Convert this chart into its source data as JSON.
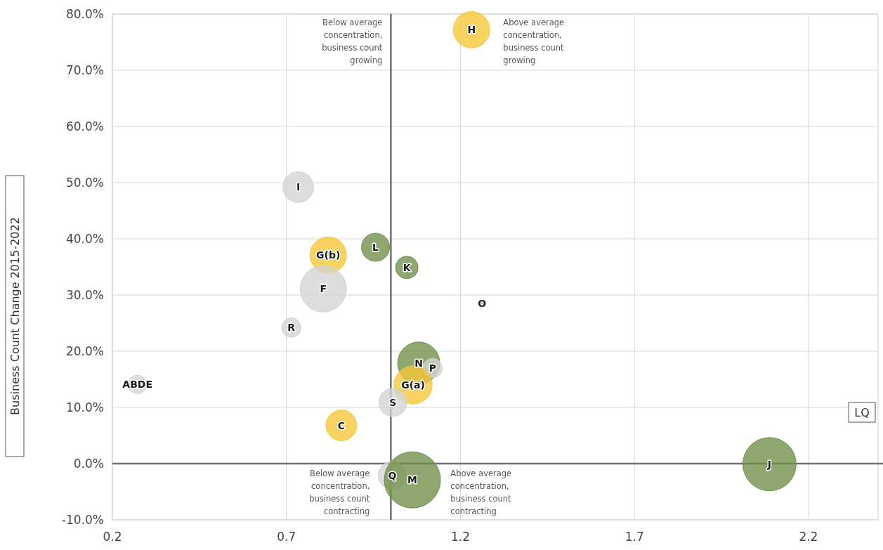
{
  "chart_data": {
    "type": "bubble",
    "xlabel": "LQ",
    "ylabel": "Business Count Change 2015-2022",
    "x": [
      0.272,
      0.734,
      0.82,
      0.806,
      0.714,
      0.956,
      1.046,
      1.262,
      1.232,
      1.08,
      1.12,
      1.064,
      1.006,
      0.858,
      1.004,
      1.062,
      2.088
    ],
    "values": [
      14.1,
      49.2,
      37.1,
      31.1,
      24.2,
      38.5,
      34.9,
      28.5,
      77.2,
      17.9,
      17.0,
      14.0,
      10.9,
      6.8,
      -2.1,
      -2.9,
      -0.1
    ],
    "sizes": [
      0.11,
      0.3,
      0.42,
      0.68,
      0.12,
      0.25,
      0.16,
      0.02,
      0.42,
      0.56,
      0.12,
      0.46,
      0.25,
      0.3,
      0.25,
      1,
      0.9
    ],
    "colors": [
      "#d4d4d4",
      "#d4d4d4",
      "#f7c636",
      "#d4d4d4",
      "#d4d4d4",
      "#6f8f48",
      "#6f8f48",
      "#6f8f48",
      "#f7c636",
      "#6f8f48",
      "#d4d4d4",
      "#f7c636",
      "#d4d4d4",
      "#f7c636",
      "#d4d4d4",
      "#6f8f48",
      "#6f8f48"
    ],
    "xlim": [
      0.2,
      2.4
    ],
    "xticks": [
      0.2,
      0.7,
      1.2,
      1.7,
      2.2
    ],
    "ylim": [
      -10,
      80
    ],
    "yticks": [
      {
        "value": -10,
        "label": "-10.0%"
      },
      {
        "value": 0,
        "label": "0.0%"
      },
      {
        "value": 10,
        "label": "10.0%"
      },
      {
        "value": 20,
        "label": "20.0%"
      },
      {
        "value": 30,
        "label": "30.0%"
      },
      {
        "value": 40,
        "label": "40.0%"
      },
      {
        "value": 50,
        "label": "50.0%"
      },
      {
        "value": 60,
        "label": "60.0%"
      },
      {
        "value": 70,
        "label": "70.0%"
      },
      {
        "value": 80,
        "label": "80.0%"
      }
    ],
    "grid": true,
    "ref_lines": [
      {
        "axis": "x",
        "value": 1,
        "color": "#707070"
      },
      {
        "axis": "y",
        "value": 0,
        "color": "#707070"
      }
    ],
    "annotations": [
      {
        "text": "ABDE",
        "x": 0.272,
        "y": 14.1
      },
      {
        "text": "I",
        "x": 0.734,
        "y": 49.2
      },
      {
        "text": "G(b)",
        "x": 0.82,
        "y": 37.1
      },
      {
        "text": "F",
        "x": 0.806,
        "y": 31.1
      },
      {
        "text": "R",
        "x": 0.714,
        "y": 24.2
      },
      {
        "text": "L",
        "x": 0.956,
        "y": 38.5
      },
      {
        "text": "K",
        "x": 1.046,
        "y": 34.9
      },
      {
        "text": "O",
        "x": 1.262,
        "y": 28.5
      },
      {
        "text": "H",
        "x": 1.232,
        "y": 77.2
      },
      {
        "text": "N",
        "x": 1.08,
        "y": 17.9
      },
      {
        "text": "P",
        "x": 1.12,
        "y": 17.0
      },
      {
        "text": "G(a)",
        "x": 1.064,
        "y": 14.0
      },
      {
        "text": "S",
        "x": 1.006,
        "y": 10.9
      },
      {
        "text": "C",
        "x": 0.858,
        "y": 6.8
      },
      {
        "text": "Q",
        "x": 1.004,
        "y": -2.1
      },
      {
        "text": "M",
        "x": 1.062,
        "y": -2.9
      },
      {
        "text": "J",
        "x": 2.088,
        "y": -0.1
      },
      "Below average\nconcentration,\nbusiness count\ngrowing",
      "Above average\nconcentration,\nbusiness count\ngrowing",
      "Below average\nconcentration,\nbusiness count\ncontracting",
      "Above average\nconcentration,\nbusiness count\ncontracting"
    ]
  }
}
